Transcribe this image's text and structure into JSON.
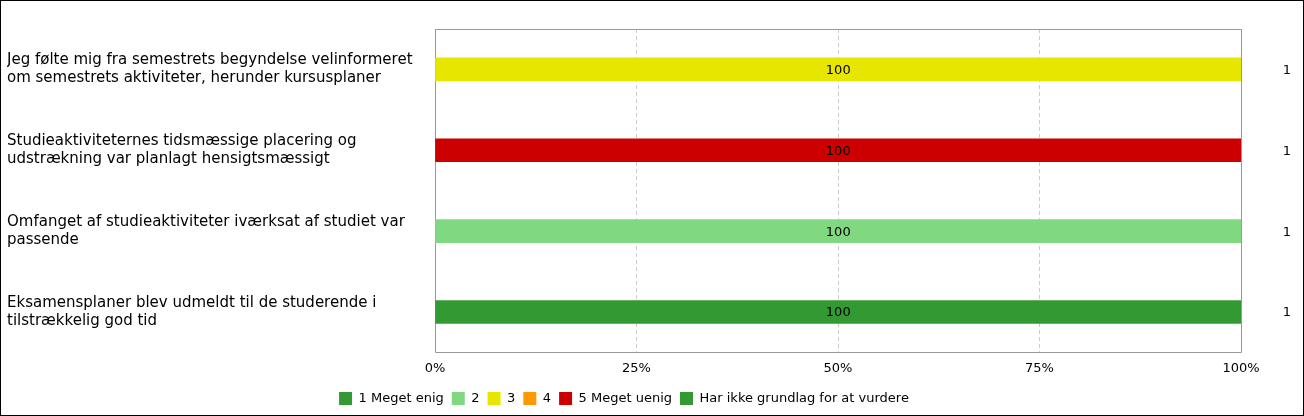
{
  "chart_data": {
    "type": "bar",
    "orientation": "horizontal",
    "stacked": true,
    "categories": [
      "Jeg følte mig fra semestrets begyndelse velinformeret om semestrets aktiviteter, herunder kursusplaner",
      "Studieaktiviteternes tidsmæssige placering og udstrækning var planlagt hensigtsmæssigt",
      "Omfanget af studieaktiviteter iværksat af studiet var passende",
      "Eksamensplaner blev udmeldt til de studerende i tilstrækkelig god tid"
    ],
    "series": [
      {
        "name": "1 Meget enig",
        "color": "#339933",
        "values": [
          null,
          null,
          null,
          100
        ]
      },
      {
        "name": "2",
        "color": "#80d880",
        "values": [
          null,
          null,
          100,
          null
        ]
      },
      {
        "name": "3",
        "color": "#e6e600",
        "values": [
          100,
          null,
          null,
          null
        ]
      },
      {
        "name": "4",
        "color": "#ff9900",
        "values": [
          null,
          null,
          null,
          null
        ]
      },
      {
        "name": "5 Meget uenig",
        "color": "#cc0000",
        "values": [
          null,
          100,
          null,
          null
        ]
      },
      {
        "name": "Har ikke grundlag for at vurdere",
        "color": "#339933",
        "values": [
          null,
          null,
          null,
          null
        ]
      }
    ],
    "xlim": [
      0,
      100
    ],
    "xticks": [
      {
        "value": 0,
        "label": "0%"
      },
      {
        "value": 25,
        "label": "25%"
      },
      {
        "value": 50,
        "label": "50%"
      },
      {
        "value": 75,
        "label": "75%"
      },
      {
        "value": 100,
        "label": "100%"
      }
    ],
    "grid": "x",
    "legend": "bottom",
    "data_labels": true,
    "annotations": [
      "1",
      "1",
      "1",
      "1"
    ]
  }
}
